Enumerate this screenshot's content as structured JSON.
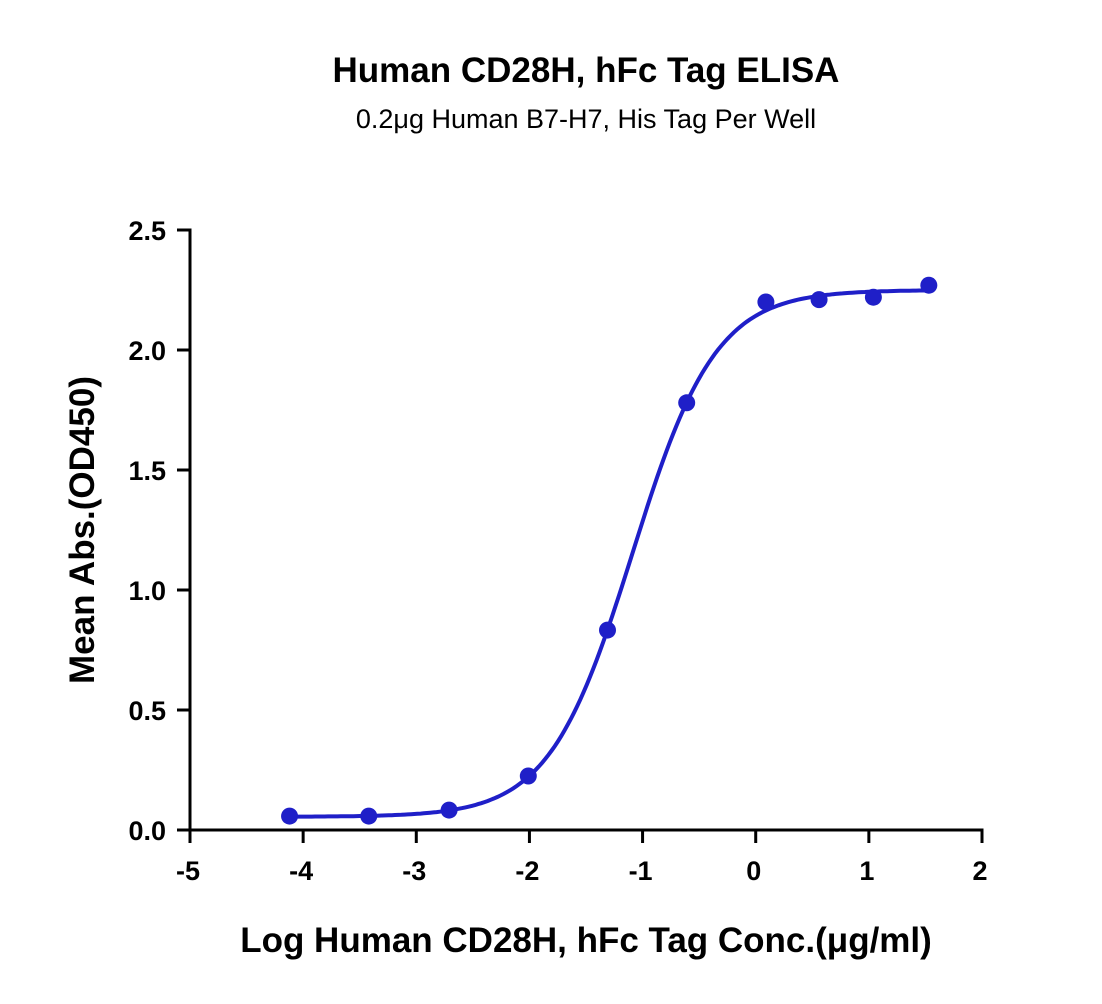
{
  "chart_data": {
    "type": "scatter",
    "title": "Human CD28H, hFc Tag ELISA",
    "subtitle": "0.2μg Human B7-H7, His Tag Per Well",
    "xlabel": "Log Human CD28H, hFc Tag Conc.(μg/ml)",
    "ylabel": "Mean Abs.(OD450)",
    "xlim": [
      -5,
      2
    ],
    "ylim": [
      0,
      2.5
    ],
    "xticks": [
      "-5",
      "-4",
      "-3",
      "-2",
      "-1",
      "0",
      "1",
      "2"
    ],
    "yticks": [
      "0.0",
      "0.5",
      "1.0",
      "1.5",
      "2.0",
      "2.5"
    ],
    "grid": false,
    "color": "#1f1fc8",
    "x": [
      -4.12,
      -3.42,
      -2.71,
      -2.01,
      -1.31,
      -0.61,
      0.09,
      0.56,
      1.04,
      1.53
    ],
    "y": [
      0.058,
      0.058,
      0.083,
      0.225,
      0.833,
      1.78,
      2.2,
      2.21,
      2.22,
      2.27
    ],
    "fit_curve": "sigmoidal"
  }
}
